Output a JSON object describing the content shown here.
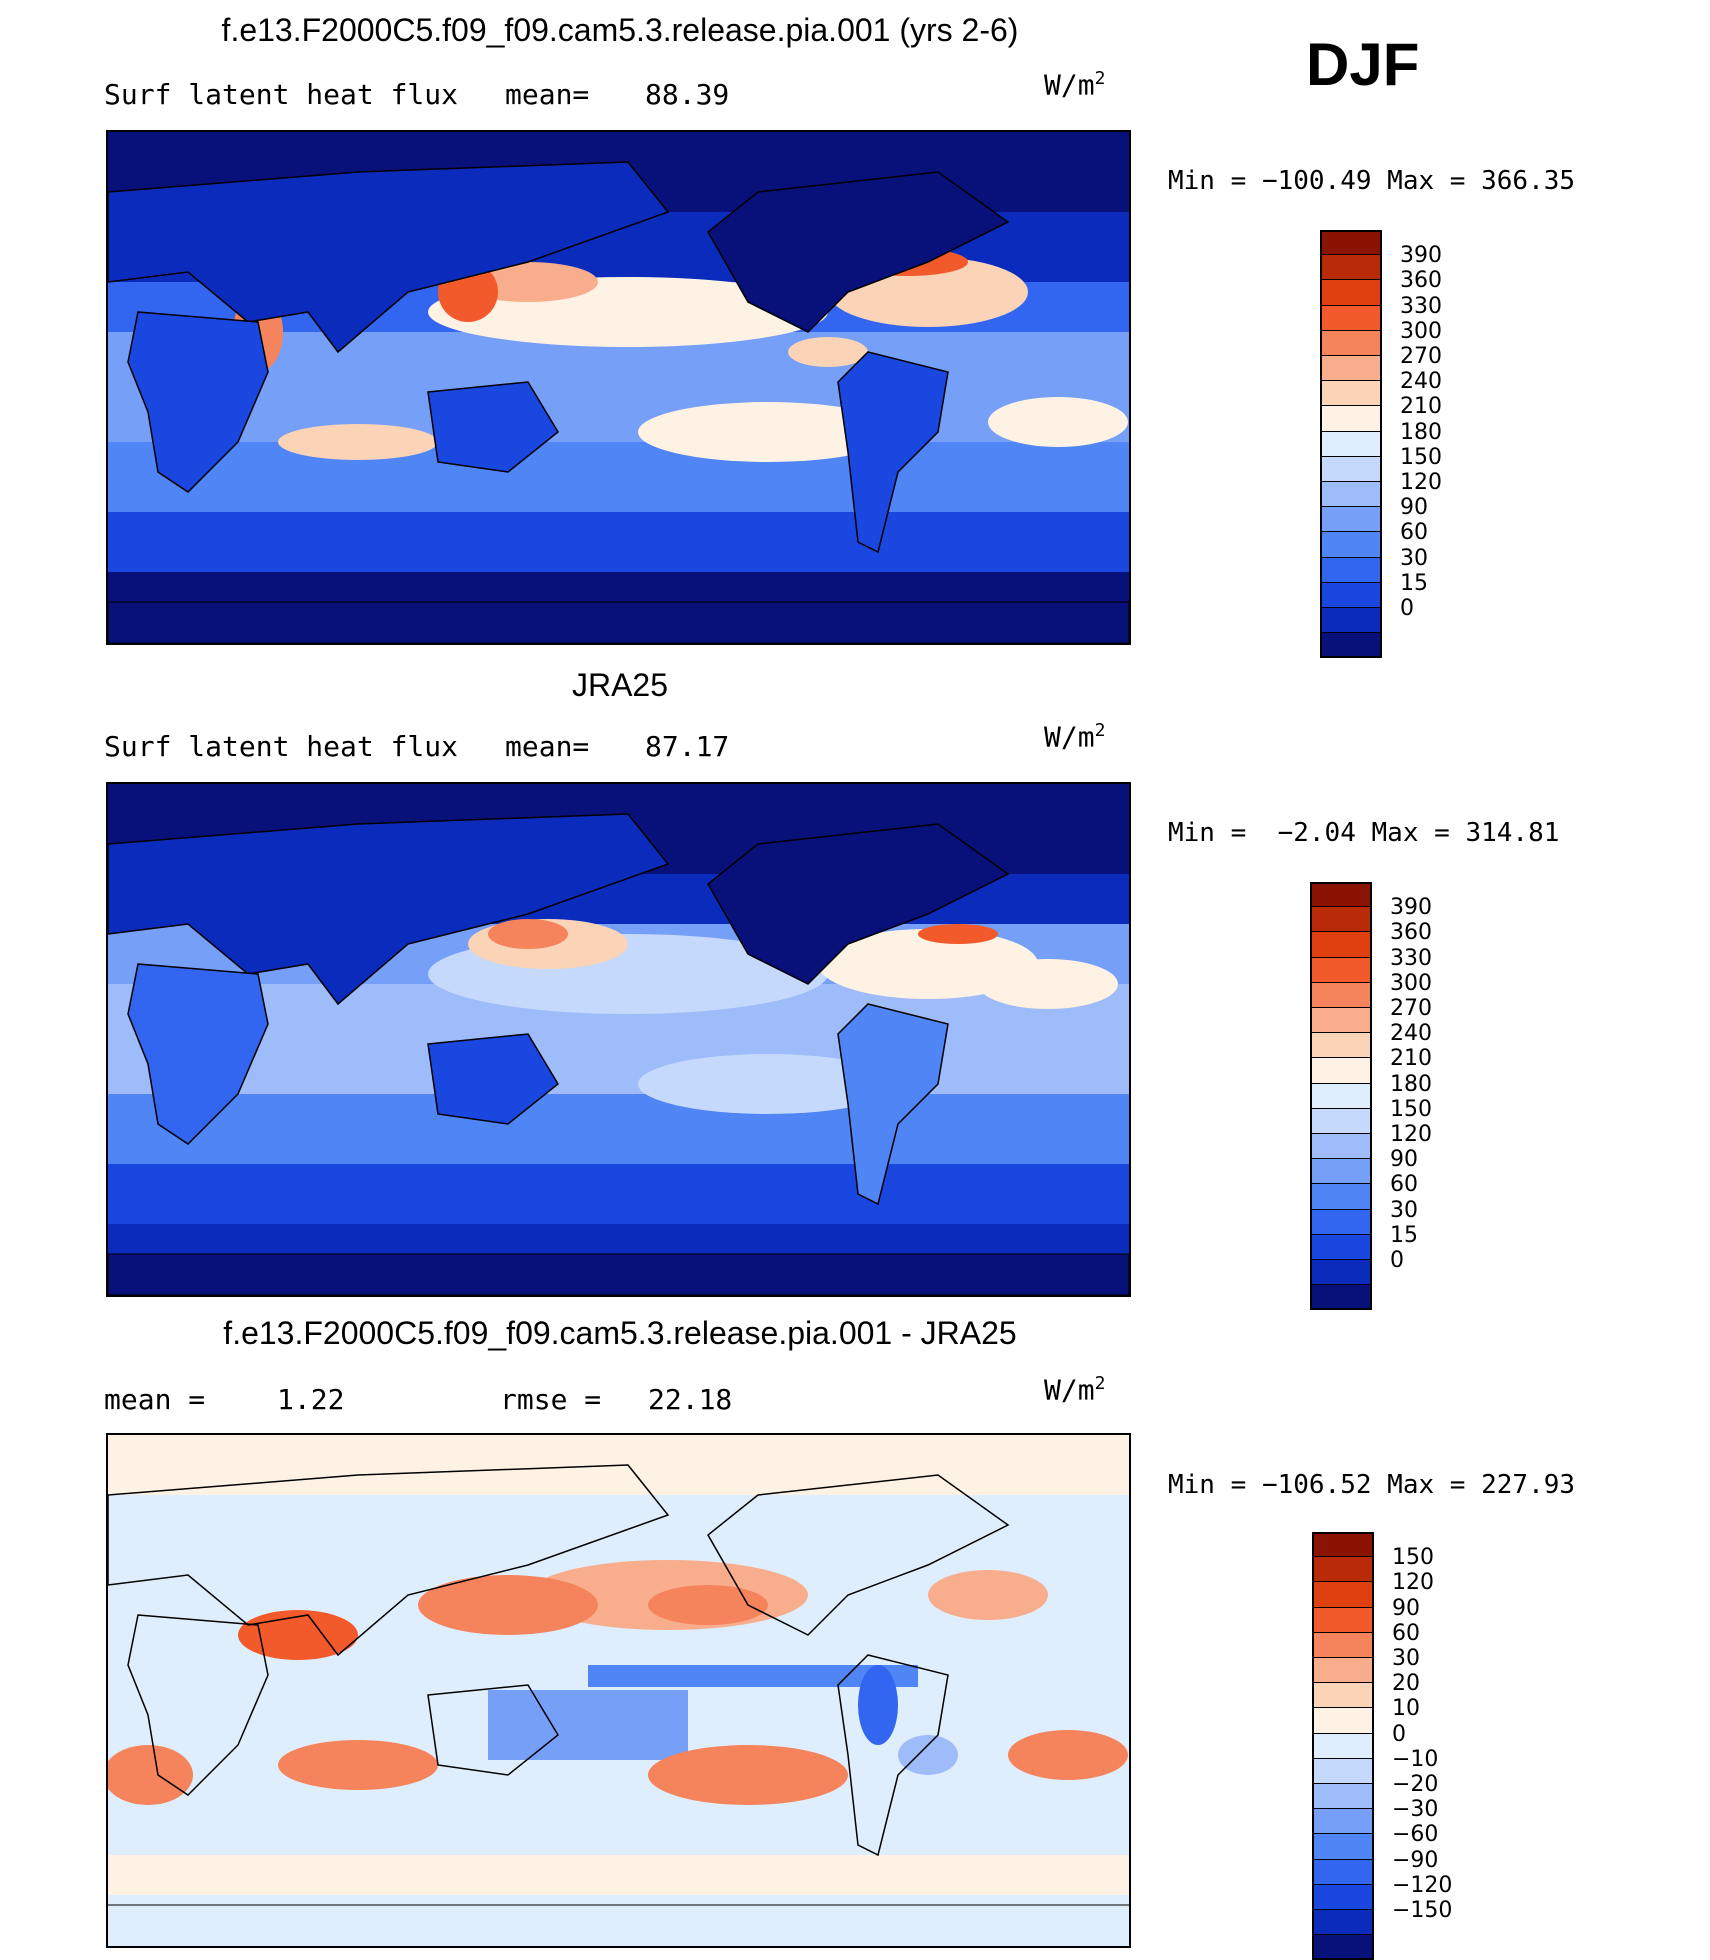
{
  "season": "DJF",
  "colors": {
    "abs_scale": [
      "#08107a",
      "#0b2bbd",
      "#1a47e0",
      "#3266f0",
      "#4f85f4",
      "#769ff7",
      "#9ebcfa",
      "#c4d9fb",
      "#dfeefc",
      "#fdf2e4",
      "#fbd3b6",
      "#f8ad8c",
      "#f5845c",
      "#f35a2b",
      "#e0400f",
      "#b92a09",
      "#8a1304"
    ],
    "diff_scale": [
      "#08107a",
      "#0b2bbd",
      "#1a47e0",
      "#3266f0",
      "#4f85f4",
      "#769ff7",
      "#9ebcfa",
      "#c4d9fb",
      "#dfeefc",
      "#fdf2e4",
      "#fbd3b6",
      "#f8ad8c",
      "#f5845c",
      "#f35a2b",
      "#e0400f",
      "#b92a09",
      "#8a1304"
    ]
  },
  "panels": [
    {
      "title": "f.e13.F2000C5.f09_f09.cam5.3.release.pia.001 (yrs 2-6)",
      "left_label": "Surf latent heat flux",
      "stat_label": "mean=",
      "stat_value": "88.39",
      "units_base": "W/m",
      "units_exp": "2",
      "min_label": "Min",
      "min_value": "−100.49",
      "max_label": "Max",
      "max_value": "366.35",
      "colorbar_ticks": [
        "390",
        "360",
        "330",
        "300",
        "270",
        "240",
        "210",
        "180",
        "150",
        "120",
        "90",
        "60",
        "30",
        "15",
        "0"
      ]
    },
    {
      "title": "JRA25",
      "left_label": "Surf latent heat flux",
      "stat_label": "mean=",
      "stat_value": "87.17",
      "units_base": "W/m",
      "units_exp": "2",
      "min_label": "Min",
      "min_value": "−2.04",
      "max_label": "Max",
      "max_value": "314.81",
      "colorbar_ticks": [
        "390",
        "360",
        "330",
        "300",
        "270",
        "240",
        "210",
        "180",
        "150",
        "120",
        "90",
        "60",
        "30",
        "15",
        "0"
      ]
    },
    {
      "title": "f.e13.F2000C5.f09_f09.cam5.3.release.pia.001 - JRA25",
      "left_label": "mean =",
      "left_value": "1.22",
      "stat_label": "rmse =",
      "stat_value": "22.18",
      "units_base": "W/m",
      "units_exp": "2",
      "min_label": "Min",
      "min_value": "−106.52",
      "max_label": "Max",
      "max_value": "227.93",
      "colorbar_ticks": [
        "150",
        "120",
        "90",
        "60",
        "30",
        "20",
        "10",
        "0",
        "−10",
        "−20",
        "−30",
        "−60",
        "−90",
        "−120",
        "−150"
      ]
    }
  ]
}
